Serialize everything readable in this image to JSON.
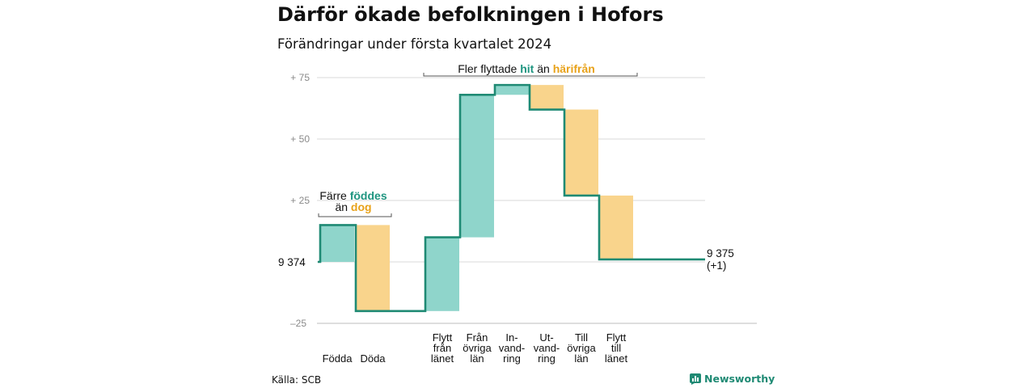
{
  "title": "Därför ökade befolkningen i Hofors",
  "subtitle": "Förändringar under första kvartalet 2024",
  "source": "Källa: SCB",
  "brand": "Newsworthy",
  "colors": {
    "increase": "#8fd5cb",
    "decrease": "#f9d48c",
    "line": "#1f8a74",
    "grid": "#d9d9d9"
  },
  "chart_data": {
    "type": "waterfall",
    "title": "Därför ökade befolkningen i Hofors",
    "subtitle": "Förändringar under första kvartalet 2024",
    "start": {
      "value": 0,
      "label": "9 374"
    },
    "end": {
      "value": 1,
      "label": "9 375",
      "sublabel": "(+1)"
    },
    "y_ticks": [
      {
        "value": 75,
        "label": "+  75"
      },
      {
        "value": 50,
        "label": "+  50"
      },
      {
        "value": 25,
        "label": "+  25"
      },
      {
        "value": -25,
        "label": "–25"
      }
    ],
    "ylim": [
      -25,
      75
    ],
    "categories": [
      {
        "label": [
          "Födda"
        ],
        "change": 15,
        "type": "increase"
      },
      {
        "label": [
          "Döda"
        ],
        "change": -35,
        "type": "decrease"
      },
      {
        "label": [
          "Flytt",
          "från",
          "länet"
        ],
        "change": 30,
        "type": "increase"
      },
      {
        "label": [
          "Från",
          "övriga",
          "län"
        ],
        "change": 58,
        "type": "increase"
      },
      {
        "label": [
          "In-",
          "vand-",
          "ring"
        ],
        "change": 4,
        "type": "increase"
      },
      {
        "label": [
          "Ut-",
          "vand-",
          "ring"
        ],
        "change": -10,
        "type": "decrease"
      },
      {
        "label": [
          "Till",
          "övriga",
          "län"
        ],
        "change": -35,
        "type": "decrease"
      },
      {
        "label": [
          "Flytt",
          "till",
          "länet"
        ],
        "change": -26,
        "type": "decrease"
      }
    ],
    "annotations": [
      {
        "parts": [
          {
            "text": "Färre ",
            "style": "plain"
          },
          {
            "text": "föddes",
            "style": "teal"
          }
        ],
        "parts2": [
          {
            "text": "än ",
            "style": "plain"
          },
          {
            "text": "dog",
            "style": "orange"
          }
        ]
      },
      {
        "parts": [
          {
            "text": "Fler flyttade ",
            "style": "plain"
          },
          {
            "text": "hit",
            "style": "teal"
          },
          {
            "text": "  än ",
            "style": "plain"
          },
          {
            "text": "härifrån",
            "style": "orange"
          }
        ]
      }
    ]
  }
}
